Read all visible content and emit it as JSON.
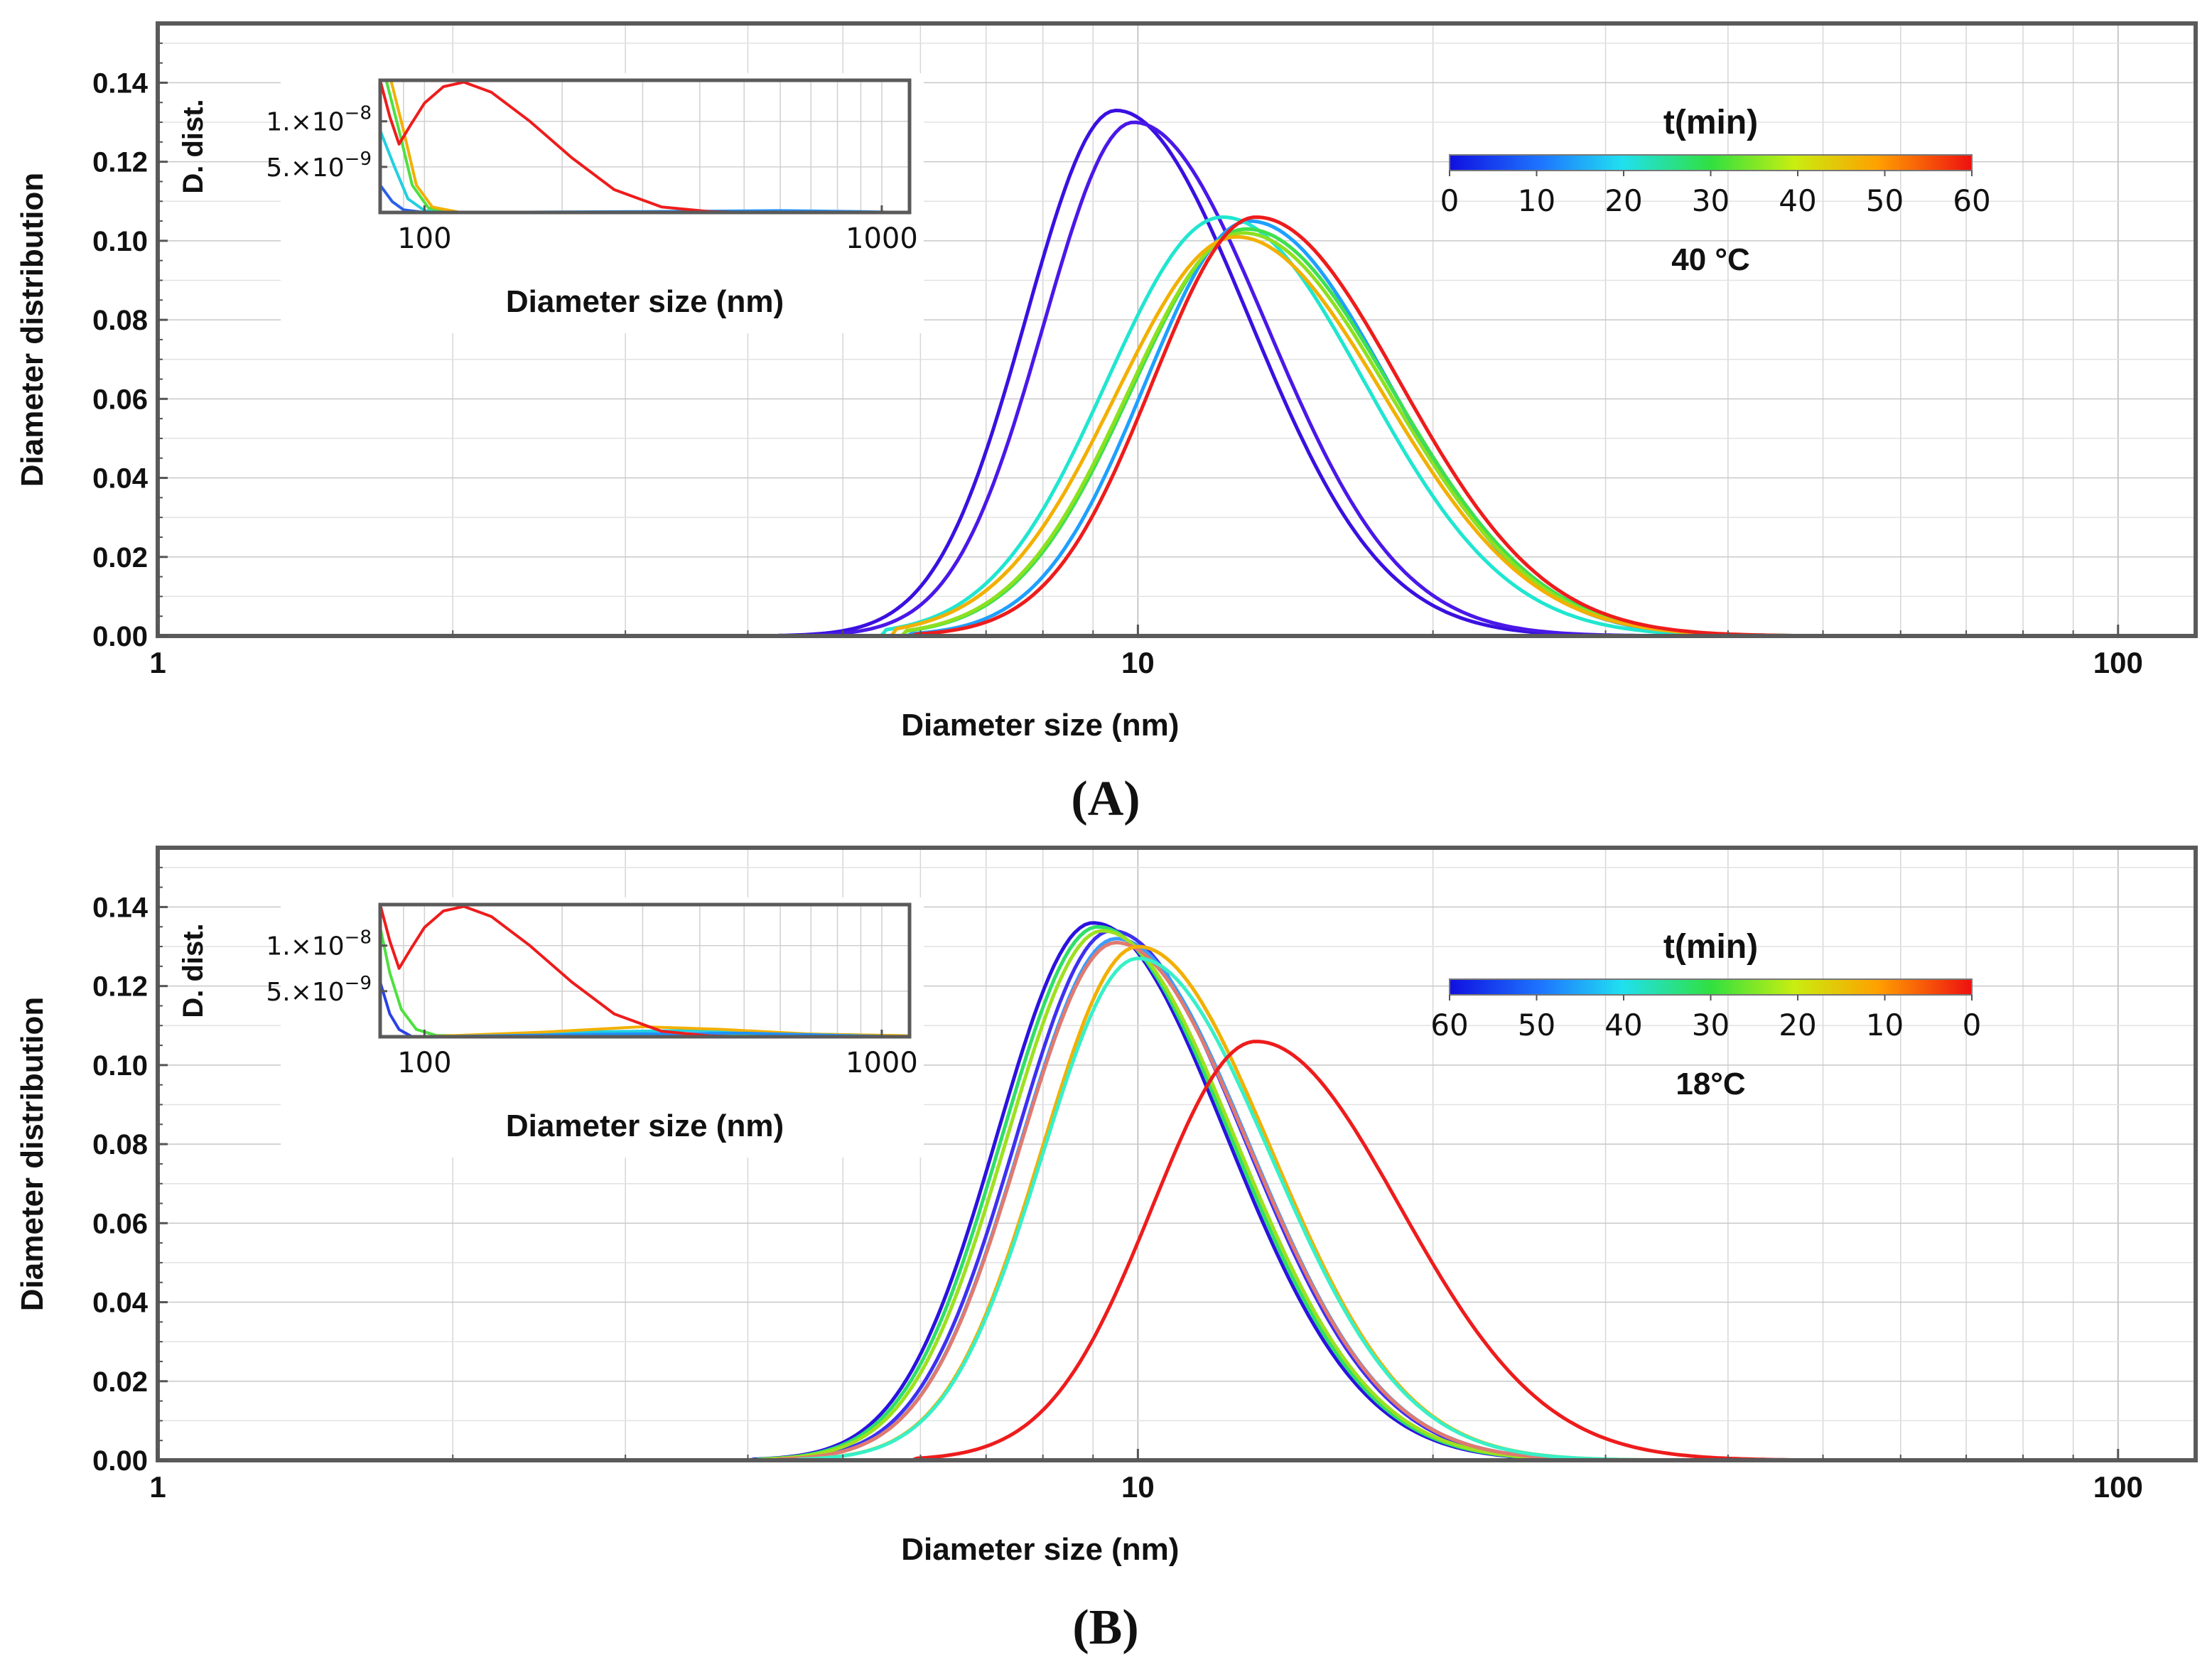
{
  "chart_data": [
    {
      "panel": "A",
      "panel_label": "(A)",
      "type": "line",
      "xscale": "log",
      "xlabel": "Diameter size (nm)",
      "ylabel": "Diameter distribution",
      "xlim": [
        1,
        120
      ],
      "ylim": [
        0,
        0.155
      ],
      "xtick_labels": [
        "1",
        "10",
        "100"
      ],
      "ytick_labels": [
        "0.00",
        "0.02",
        "0.04",
        "0.06",
        "0.08",
        "0.10",
        "0.12",
        "0.14"
      ],
      "grid": true,
      "colorbar": {
        "title": "t(min)",
        "tick_labels": [
          "0",
          "10",
          "20",
          "30",
          "40",
          "50",
          "60"
        ],
        "condition": "40 °C"
      },
      "series": [
        {
          "color": "#3a10e0",
          "peak_x": 9.5,
          "peak_y": 0.133,
          "sigma": 0.24,
          "skew": 0.3
        },
        {
          "color": "#4a18e8",
          "peak_x": 9.9,
          "peak_y": 0.13,
          "sigma": 0.24,
          "skew": 0.3
        },
        {
          "color": "#1ea0ff",
          "peak_x": 13.0,
          "peak_y": 0.105,
          "sigma": 0.27,
          "skew": 0.22
        },
        {
          "color": "#20e6d0",
          "peak_x": 12.2,
          "peak_y": 0.106,
          "sigma": 0.29,
          "skew": 0.15
        },
        {
          "color": "#3ee050",
          "peak_x": 12.9,
          "peak_y": 0.103,
          "sigma": 0.29,
          "skew": 0.18
        },
        {
          "color": "#8ee020",
          "peak_x": 12.8,
          "peak_y": 0.102,
          "sigma": 0.29,
          "skew": 0.18
        },
        {
          "color": "#f2b000",
          "peak_x": 12.6,
          "peak_y": 0.101,
          "sigma": 0.3,
          "skew": 0.15
        },
        {
          "color": "#ee1c1c",
          "peak_x": 13.2,
          "peak_y": 0.106,
          "sigma": 0.27,
          "skew": 0.25
        }
      ],
      "inset": {
        "type": "line",
        "xscale": "log",
        "xlabel": "Diameter size (nm)",
        "ylabel": "D. dist.",
        "xlim": [
          80,
          1150
        ],
        "ylim": [
          0,
          1.45e-08
        ],
        "xtick_labels": [
          "100",
          "1000"
        ],
        "ytick_labels": [
          {
            "mantissa": "1.×10",
            "exponent": "−8",
            "value": 1e-08
          },
          {
            "mantissa": "5.×10",
            "exponent": "−9",
            "value": 5e-09
          }
        ],
        "series": [
          {
            "color": "#2a60e8",
            "points": [
              [
                80,
                3e-09
              ],
              [
                85,
                1.2e-09
              ],
              [
                90,
                3e-10
              ],
              [
                100,
                0
              ],
              [
                1150,
                0
              ]
            ]
          },
          {
            "color": "#20d0e0",
            "points": [
              [
                80,
                9e-09
              ],
              [
                86,
                5e-09
              ],
              [
                92,
                1.5e-09
              ],
              [
                100,
                2e-10
              ],
              [
                110,
                0
              ],
              [
                1150,
                0
              ]
            ]
          },
          {
            "color": "#4ee040",
            "points": [
              [
                82,
                1.5e-08
              ],
              [
                88,
                9e-09
              ],
              [
                94,
                3e-09
              ],
              [
                102,
                5e-10
              ],
              [
                115,
                0
              ],
              [
                1150,
                0
              ]
            ]
          },
          {
            "color": "#f2b000",
            "points": [
              [
                84,
                1.5e-08
              ],
              [
                90,
                9e-09
              ],
              [
                96,
                3e-09
              ],
              [
                104,
                6e-10
              ],
              [
                120,
                0
              ],
              [
                1150,
                0
              ]
            ]
          },
          {
            "color": "#1e90ff",
            "points": [
              [
                120,
                0
              ],
              [
                300,
                1e-10
              ],
              [
                600,
                2e-10
              ],
              [
                900,
                1e-10
              ],
              [
                1150,
                0
              ]
            ]
          },
          {
            "color": "#ee1c1c",
            "points": [
              [
                80,
                1.45e-08
              ],
              [
                84,
                1.05e-08
              ],
              [
                88,
                7.5e-09
              ],
              [
                93,
                9.5e-09
              ],
              [
                100,
                1.2e-08
              ],
              [
                110,
                1.38e-08
              ],
              [
                122,
                1.43e-08
              ],
              [
                140,
                1.32e-08
              ],
              [
                170,
                1e-08
              ],
              [
                210,
                6e-09
              ],
              [
                260,
                2.5e-09
              ],
              [
                330,
                6e-10
              ],
              [
                420,
                1e-10
              ],
              [
                500,
                0
              ],
              [
                1150,
                0
              ]
            ]
          }
        ]
      }
    },
    {
      "panel": "B",
      "panel_label": "(B)",
      "type": "line",
      "xscale": "log",
      "xlabel": "Diameter size (nm)",
      "ylabel": "Diameter distribution",
      "xlim": [
        1,
        120
      ],
      "ylim": [
        0,
        0.155
      ],
      "xtick_labels": [
        "1",
        "10",
        "100"
      ],
      "ytick_labels": [
        "0.00",
        "0.02",
        "0.04",
        "0.06",
        "0.08",
        "0.10",
        "0.12",
        "0.14"
      ],
      "grid": true,
      "colorbar": {
        "title": "t(min)",
        "tick_labels": [
          "60",
          "50",
          "40",
          "30",
          "20",
          "10",
          "0"
        ],
        "condition": "18°C"
      },
      "series": [
        {
          "color": "#2a12e0",
          "peak_x": 9.0,
          "peak_y": 0.136,
          "sigma": 0.25,
          "skew": 0.25
        },
        {
          "color": "#3e30f0",
          "peak_x": 9.4,
          "peak_y": 0.134,
          "sigma": 0.25,
          "skew": 0.25
        },
        {
          "color": "#3a9cff",
          "peak_x": 9.5,
          "peak_y": 0.132,
          "sigma": 0.25,
          "skew": 0.25
        },
        {
          "color": "#2ee068",
          "peak_x": 9.1,
          "peak_y": 0.135,
          "sigma": 0.25,
          "skew": 0.25
        },
        {
          "color": "#9ee020",
          "peak_x": 9.2,
          "peak_y": 0.134,
          "sigma": 0.25,
          "skew": 0.25
        },
        {
          "color": "#e07a70",
          "peak_x": 9.5,
          "peak_y": 0.131,
          "sigma": 0.25,
          "skew": 0.25
        },
        {
          "color": "#f2b000",
          "peak_x": 10.0,
          "peak_y": 0.13,
          "sigma": 0.25,
          "skew": 0.25
        },
        {
          "color": "#38f0c8",
          "peak_x": 10.0,
          "peak_y": 0.127,
          "sigma": 0.25,
          "skew": 0.25
        },
        {
          "color": "#ee1c1c",
          "peak_x": 13.2,
          "peak_y": 0.106,
          "sigma": 0.27,
          "skew": 0.25
        }
      ],
      "inset": {
        "type": "line",
        "xscale": "log",
        "xlabel": "Diameter size (nm)",
        "ylabel": "D. dist.",
        "xlim": [
          80,
          1150
        ],
        "ylim": [
          0,
          1.45e-08
        ],
        "xtick_labels": [
          "100",
          "1000"
        ],
        "ytick_labels": [
          {
            "mantissa": "1.×10",
            "exponent": "−8",
            "value": 1e-08
          },
          {
            "mantissa": "5.×10",
            "exponent": "−9",
            "value": 5e-09
          }
        ],
        "series": [
          {
            "color": "#2a40e8",
            "points": [
              [
                80,
                6e-09
              ],
              [
                84,
                2.5e-09
              ],
              [
                88,
                8e-10
              ],
              [
                94,
                0
              ],
              [
                1150,
                0
              ]
            ]
          },
          {
            "color": "#4ee040",
            "points": [
              [
                80,
                1.2e-08
              ],
              [
                84,
                7e-09
              ],
              [
                89,
                3e-09
              ],
              [
                96,
                8e-10
              ],
              [
                106,
                1.5e-10
              ],
              [
                130,
                1e-10
              ],
              [
                250,
                2e-10
              ],
              [
                500,
                1e-10
              ],
              [
                1150,
                0
              ]
            ]
          },
          {
            "color": "#20d0e0",
            "points": [
              [
                110,
                0
              ],
              [
                200,
                5e-10
              ],
              [
                400,
                7e-10
              ],
              [
                700,
                3e-10
              ],
              [
                1150,
                1e-10
              ]
            ]
          },
          {
            "color": "#f2b000",
            "points": [
              [
                100,
                0
              ],
              [
                180,
                5e-10
              ],
              [
                300,
                1.1e-09
              ],
              [
                450,
                8e-10
              ],
              [
                700,
                3e-10
              ],
              [
                1150,
                1e-10
              ]
            ]
          },
          {
            "color": "#1e90ff",
            "points": [
              [
                100,
                0
              ],
              [
                250,
                3e-10
              ],
              [
                500,
                4e-10
              ],
              [
                900,
                1e-10
              ],
              [
                1150,
                0
              ]
            ]
          },
          {
            "color": "#ee1c1c",
            "points": [
              [
                80,
                1.45e-08
              ],
              [
                84,
                1.05e-08
              ],
              [
                88,
                7.5e-09
              ],
              [
                93,
                9.5e-09
              ],
              [
                100,
                1.2e-08
              ],
              [
                110,
                1.38e-08
              ],
              [
                122,
                1.43e-08
              ],
              [
                140,
                1.32e-08
              ],
              [
                170,
                1e-08
              ],
              [
                210,
                6e-09
              ],
              [
                260,
                2.5e-09
              ],
              [
                330,
                6e-10
              ],
              [
                420,
                1e-10
              ],
              [
                500,
                0
              ],
              [
                1150,
                0
              ]
            ]
          }
        ]
      }
    }
  ]
}
